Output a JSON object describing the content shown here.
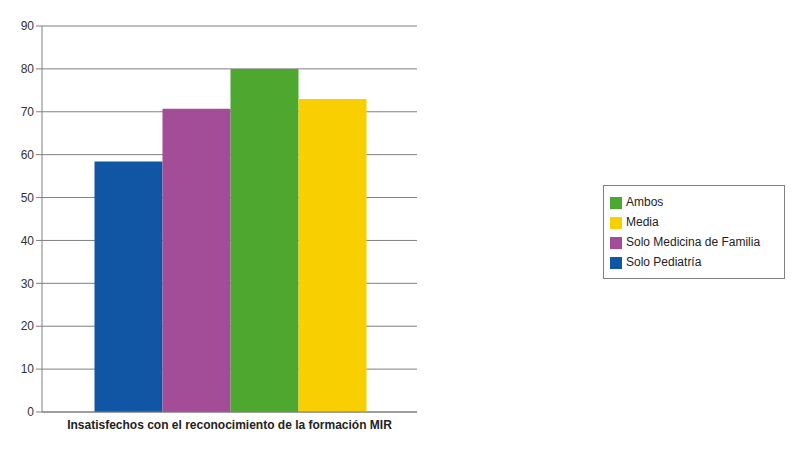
{
  "chart_data": {
    "type": "bar",
    "categories": [
      "Insatisfechos con el reconocimiento de la formación MIR"
    ],
    "series": [
      {
        "name": "Solo Pediatría",
        "color": "#1155a5",
        "values": [
          58.4
        ]
      },
      {
        "name": "Solo Medicina de Familia",
        "color": "#a34c97",
        "values": [
          70.7
        ]
      },
      {
        "name": "Ambos",
        "color": "#4ea72e",
        "values": [
          80
        ]
      },
      {
        "name": "Media",
        "color": "#f8cf00",
        "values": [
          73
        ]
      }
    ],
    "ylim": [
      0,
      90
    ],
    "yticks": [
      0,
      10,
      20,
      30,
      40,
      50,
      60,
      70,
      80,
      90
    ],
    "grid": true,
    "legend": "right"
  }
}
